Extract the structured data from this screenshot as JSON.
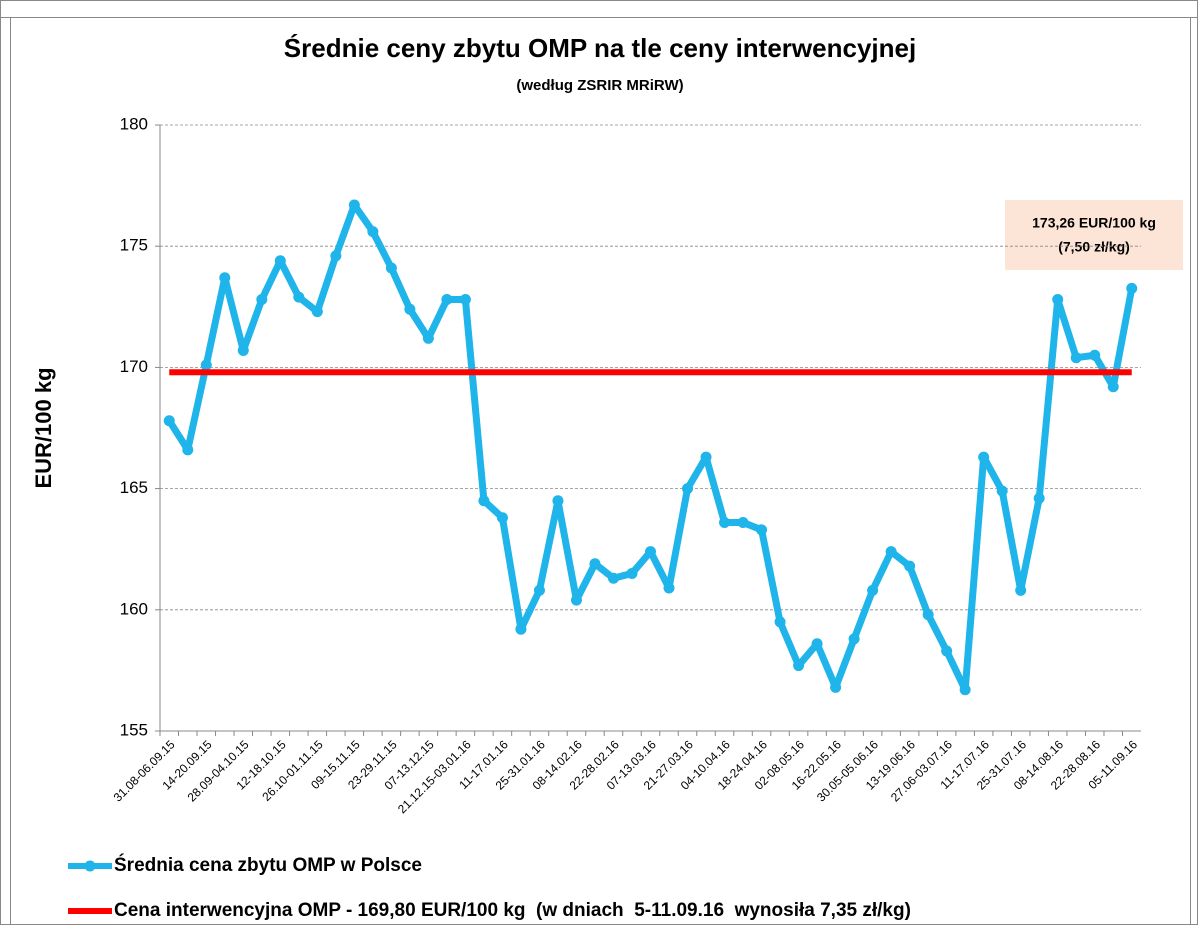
{
  "chart_data": {
    "type": "line",
    "title": "Średnie ceny zbytu OMP na tle ceny interwencyjnej",
    "subtitle": "(według ZSRIR MRiRW)",
    "y_label": "EUR/100 kg",
    "annotation": [
      "173,26 EUR/100 kg",
      "(7,50 zł/kg)"
    ],
    "categories": [
      "31.08-06.09.15",
      null,
      "14-20.09.15",
      null,
      "28.09-04.10.15",
      null,
      "12-18.10.15",
      null,
      "26.10-01.11.15",
      null,
      "09-15.11.15",
      null,
      "23-29.11.15",
      null,
      "07-13.12.15",
      null,
      "21.12.15-03.01.16",
      null,
      "11-17.01.16",
      null,
      "25-31.01.16",
      null,
      "08-14.02.16",
      null,
      "22-28.02.16",
      null,
      "07-13.03.16",
      null,
      "21-27.03.16",
      null,
      "04-10.04.16",
      null,
      "18-24.04.16",
      null,
      "02-08.05.16",
      null,
      "16-22.05.16",
      null,
      "30.05-05.06.16",
      null,
      "13-19.06.16",
      null,
      "27.06-03.07.16",
      null,
      "11-17.07.16",
      null,
      "25-31.07.16",
      null,
      "08-14.08.16",
      null,
      "22-28.08.16",
      null,
      "05-11.09.16"
    ],
    "series": [
      {
        "name": "Średnia cena zbytu OMP w Polsce",
        "color": "#1fb4ea",
        "markers": true,
        "values": [
          167.8,
          166.6,
          170.1,
          173.7,
          170.7,
          172.8,
          174.4,
          172.9,
          172.3,
          174.6,
          176.7,
          175.6,
          174.1,
          172.4,
          171.2,
          172.8,
          172.8,
          164.5,
          163.8,
          159.2,
          160.8,
          164.5,
          160.4,
          161.9,
          161.3,
          161.5,
          162.4,
          160.9,
          165.0,
          166.3,
          163.6,
          163.6,
          163.3,
          159.5,
          157.7,
          158.6,
          156.8,
          158.8,
          160.8,
          162.4,
          161.8,
          159.8,
          158.3,
          156.7,
          166.3,
          164.9,
          160.8,
          164.6,
          172.8,
          170.4,
          170.5,
          169.2,
          173.26
        ]
      },
      {
        "name": "Cena interwencyjna OMP - 169,80 EUR/100 kg  (w dniach  5-11.09.16  wynosiła 7,35 zł/kg)",
        "color": "#ff0000",
        "markers": false,
        "values": [
          169.8,
          169.8,
          169.8,
          169.8,
          169.8,
          169.8,
          169.8,
          169.8,
          169.8,
          169.8,
          169.8,
          169.8,
          169.8,
          169.8,
          169.8,
          169.8,
          169.8,
          169.8,
          169.8,
          169.8,
          169.8,
          169.8,
          169.8,
          169.8,
          169.8,
          169.8,
          169.8,
          169.8,
          169.8,
          169.8,
          169.8,
          169.8,
          169.8,
          169.8,
          169.8,
          169.8,
          169.8,
          169.8,
          169.8,
          169.8,
          169.8,
          169.8,
          169.8,
          169.8,
          169.8,
          169.8,
          169.8,
          169.8,
          169.8,
          169.8,
          169.8,
          169.8,
          169.8
        ]
      }
    ],
    "ylim": [
      155,
      180
    ],
    "yticks": [
      155,
      160,
      165,
      170,
      175,
      180
    ],
    "grid": true
  }
}
